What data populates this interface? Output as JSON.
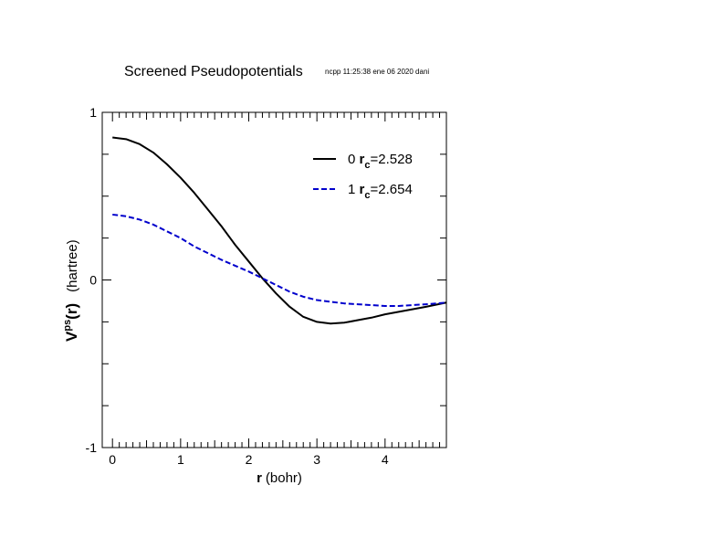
{
  "chart_data": {
    "type": "line",
    "title": "Screened Pseudopotentials",
    "subtitle": "ncpp 11:25:38 ene 06 2020 dani",
    "xlabel": {
      "symbol": "r",
      "unit": "(bohr)"
    },
    "ylabel": {
      "symbol": "V",
      "superscript": "ps",
      "arg": "(r)",
      "unit": "(hartree)"
    },
    "xlim": [
      -0.15,
      4.9
    ],
    "ylim": [
      -1,
      1
    ],
    "xticks": [
      0,
      1,
      2,
      3,
      4
    ],
    "xtick_labels": [
      "0",
      "1",
      "2",
      "3",
      "4"
    ],
    "yticks": [
      -1,
      0,
      1
    ],
    "ytick_labels": [
      "-1",
      "0",
      "1"
    ],
    "legend_position": "top-right",
    "series": [
      {
        "name": "0",
        "legend": {
          "prefix": "0",
          "symbol": "r",
          "subscript": "c",
          "value": "=2.528"
        },
        "color": "#000000",
        "dash": "solid",
        "x": [
          0,
          0.2,
          0.4,
          0.6,
          0.8,
          1.0,
          1.2,
          1.4,
          1.6,
          1.8,
          2.0,
          2.2,
          2.4,
          2.6,
          2.8,
          3.0,
          3.2,
          3.4,
          3.6,
          3.8,
          4.0,
          4.2,
          4.4,
          4.6,
          4.9
        ],
        "y": [
          0.85,
          0.84,
          0.81,
          0.76,
          0.69,
          0.61,
          0.52,
          0.42,
          0.32,
          0.21,
          0.11,
          0.01,
          -0.08,
          -0.16,
          -0.22,
          -0.25,
          -0.26,
          -0.255,
          -0.24,
          -0.225,
          -0.205,
          -0.19,
          -0.175,
          -0.16,
          -0.135
        ]
      },
      {
        "name": "1",
        "legend": {
          "prefix": "1",
          "symbol": "r",
          "subscript": "c",
          "value": "=2.654"
        },
        "color": "#0000cc",
        "dash": "dashed",
        "x": [
          0,
          0.2,
          0.4,
          0.6,
          0.8,
          1.0,
          1.2,
          1.4,
          1.6,
          1.8,
          2.0,
          2.2,
          2.4,
          2.6,
          2.8,
          3.0,
          3.2,
          3.4,
          3.6,
          3.8,
          4.0,
          4.2,
          4.4,
          4.6,
          4.9
        ],
        "y": [
          0.39,
          0.38,
          0.36,
          0.33,
          0.29,
          0.25,
          0.2,
          0.16,
          0.12,
          0.085,
          0.05,
          0.01,
          -0.03,
          -0.07,
          -0.1,
          -0.12,
          -0.13,
          -0.14,
          -0.145,
          -0.15,
          -0.155,
          -0.155,
          -0.15,
          -0.145,
          -0.135
        ]
      }
    ]
  }
}
